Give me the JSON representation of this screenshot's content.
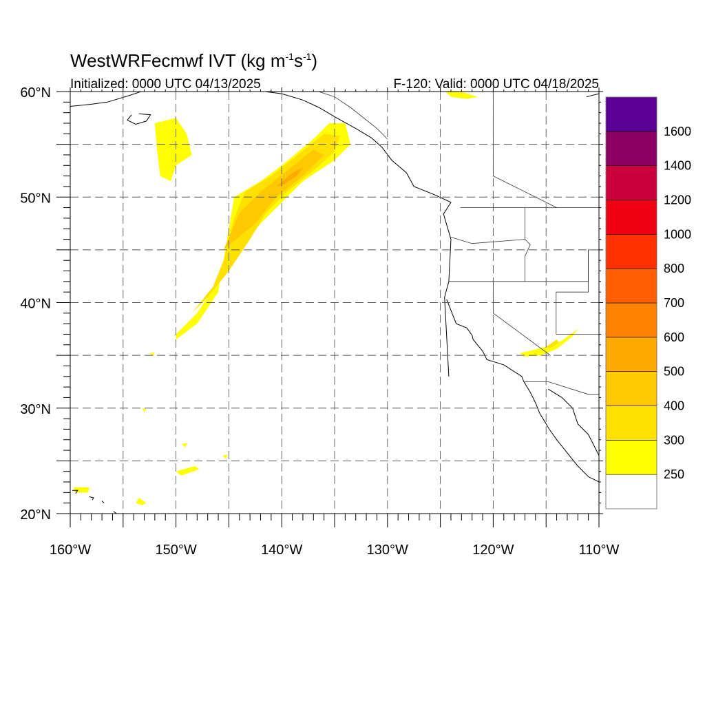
{
  "header": {
    "title_main": "WestWRFecmwf IVT (kg m",
    "title_sup1": "-1",
    "title_mid": "s",
    "title_sup2": "-1",
    "title_end": ")",
    "initialized": "Initialized: 0000 UTC 04/13/2025",
    "valid": "F-120: Valid: 0000 UTC 04/18/2025"
  },
  "map": {
    "lon_range": [
      -160,
      -110
    ],
    "lat_range": [
      20,
      60
    ],
    "lon_ticks": [
      {
        "value": -160,
        "label": "160°W"
      },
      {
        "value": -150,
        "label": "150°W"
      },
      {
        "value": -140,
        "label": "140°W"
      },
      {
        "value": -130,
        "label": "130°W"
      },
      {
        "value": -120,
        "label": "120°W"
      },
      {
        "value": -110,
        "label": "110°W"
      }
    ],
    "lat_ticks": [
      {
        "value": 60,
        "label": "60°N"
      },
      {
        "value": 50,
        "label": "50°N"
      },
      {
        "value": 40,
        "label": "40°N"
      },
      {
        "value": 30,
        "label": "30°N"
      },
      {
        "value": 20,
        "label": "20°N"
      }
    ],
    "grid_spacing_deg": 5,
    "grid": true,
    "grid_style": "dashed"
  },
  "colorbar": {
    "labels": [
      "250",
      "300",
      "400",
      "500",
      "600",
      "700",
      "800",
      "1000",
      "1200",
      "1400",
      "1600"
    ],
    "colors": [
      "#ffffff",
      "#ffff00",
      "#ffe100",
      "#ffc800",
      "#ffaa00",
      "#ff8200",
      "#ff5f00",
      "#ff3200",
      "#ee0010",
      "#c8003c",
      "#8c0064",
      "#5a0096"
    ]
  },
  "ivt_features": [
    {
      "level": 1,
      "pts": [
        [
          -150,
          36.5
        ],
        [
          -148,
          38
        ],
        [
          -146,
          41
        ],
        [
          -145.5,
          44
        ],
        [
          -145,
          47
        ],
        [
          -144.5,
          50
        ],
        [
          -142,
          51.5
        ],
        [
          -140,
          53
        ],
        [
          -137,
          55.5
        ],
        [
          -135.5,
          57
        ],
        [
          -134,
          57
        ],
        [
          -133.5,
          55
        ],
        [
          -135,
          53.5
        ],
        [
          -138,
          51.5
        ],
        [
          -140,
          49.5
        ],
        [
          -142,
          47.5
        ],
        [
          -144,
          45
        ],
        [
          -146,
          42
        ],
        [
          -148,
          39
        ],
        [
          -150,
          37
        ]
      ]
    },
    {
      "level": 2,
      "pts": [
        [
          -148.5,
          39
        ],
        [
          -146.5,
          41.5
        ],
        [
          -145.5,
          44
        ],
        [
          -144.5,
          48
        ],
        [
          -143.5,
          50.5
        ],
        [
          -141,
          52
        ],
        [
          -138.5,
          54
        ],
        [
          -136,
          56
        ],
        [
          -134.5,
          55.8
        ],
        [
          -135,
          54.3
        ],
        [
          -137,
          52.5
        ],
        [
          -139.5,
          50.5
        ],
        [
          -141.5,
          48.5
        ],
        [
          -143,
          46
        ],
        [
          -145,
          43
        ],
        [
          -147,
          40.5
        ]
      ]
    },
    {
      "level": 3,
      "pts": [
        [
          -145.5,
          45
        ],
        [
          -144,
          48.5
        ],
        [
          -142,
          50.5
        ],
        [
          -139.5,
          52.5
        ],
        [
          -137,
          54.5
        ],
        [
          -136,
          54
        ],
        [
          -138,
          52
        ],
        [
          -140.5,
          50
        ],
        [
          -142.5,
          47.5
        ]
      ]
    },
    {
      "level": 4,
      "pts": [
        [
          -140.5,
          51
        ],
        [
          -139,
          52.3
        ],
        [
          -138,
          52.8
        ],
        [
          -138.6,
          52
        ],
        [
          -139.8,
          51.2
        ]
      ]
    },
    {
      "level": 1,
      "pts": [
        [
          -152,
          57
        ],
        [
          -150,
          57.5
        ],
        [
          -149,
          56
        ],
        [
          -148.5,
          54
        ],
        [
          -150,
          53
        ],
        [
          -150.5,
          51.5
        ],
        [
          -151.5,
          52
        ],
        [
          -151.8,
          54.5
        ]
      ]
    },
    {
      "level": 1,
      "pts": [
        [
          -124.5,
          60
        ],
        [
          -123,
          60
        ],
        [
          -121.5,
          59.5
        ],
        [
          -122.5,
          59.3
        ],
        [
          -124,
          59.5
        ]
      ]
    },
    {
      "level": 1,
      "pts": [
        [
          -117.5,
          35.2
        ],
        [
          -115,
          35.8
        ],
        [
          -113.5,
          36.4
        ],
        [
          -112,
          37.5
        ],
        [
          -112.5,
          36.8
        ],
        [
          -114,
          35.6
        ],
        [
          -115.5,
          35
        ],
        [
          -117,
          34.9
        ]
      ]
    },
    {
      "level": 2,
      "pts": [
        [
          -115,
          35.8
        ],
        [
          -114,
          36.5
        ],
        [
          -113.8,
          36.2
        ],
        [
          -114.6,
          35.7
        ]
      ]
    },
    {
      "level": 1,
      "pts": [
        [
          -159.7,
          22.5
        ],
        [
          -158.2,
          22.5
        ],
        [
          -158.3,
          22
        ],
        [
          -159.5,
          22
        ]
      ]
    },
    {
      "level": 1,
      "pts": [
        [
          -153.5,
          21.5
        ],
        [
          -152.8,
          21
        ],
        [
          -153.2,
          20.8
        ],
        [
          -153.8,
          21
        ]
      ]
    },
    {
      "level": 1,
      "pts": [
        [
          -150,
          24
        ],
        [
          -148.2,
          24.5
        ],
        [
          -147.8,
          24.2
        ],
        [
          -149.5,
          23.6
        ]
      ]
    },
    {
      "level": 1,
      "pts": [
        [
          -152.5,
          35.2
        ],
        [
          -152,
          35.3
        ],
        [
          -152.2,
          34.9
        ]
      ]
    },
    {
      "level": 1,
      "pts": [
        [
          -145.6,
          25.5
        ],
        [
          -145.1,
          25.6
        ],
        [
          -145.3,
          25.2
        ]
      ]
    },
    {
      "level": 1,
      "pts": [
        [
          -149.5,
          26.6
        ],
        [
          -148.9,
          26.7
        ],
        [
          -149.1,
          26.3
        ]
      ]
    },
    {
      "level": 1,
      "pts": [
        [
          -153.2,
          30
        ],
        [
          -152.8,
          29.9
        ],
        [
          -153,
          29.6
        ]
      ]
    }
  ],
  "coastlines": [
    [
      [
        -124.2,
        33
      ],
      [
        -124.6,
        40.5
      ],
      [
        -124.2,
        42
      ],
      [
        -124,
        46
      ],
      [
        -124.7,
        48.4
      ],
      [
        -124,
        49.5
      ],
      [
        -125.5,
        50.2
      ],
      [
        -127.5,
        51
      ],
      [
        -128.2,
        52.3
      ],
      [
        -129.6,
        53.5
      ],
      [
        -130.5,
        54.7
      ],
      [
        -131.5,
        55.6
      ],
      [
        -133,
        56.5
      ],
      [
        -134.8,
        57.5
      ],
      [
        -136.5,
        58.5
      ],
      [
        -138,
        59.2
      ],
      [
        -140,
        59.8
      ],
      [
        -142,
        60.05
      ]
    ],
    [
      [
        -124.4,
        40.3
      ],
      [
        -123.5,
        38
      ],
      [
        -122.5,
        37.6
      ],
      [
        -122,
        36.9
      ],
      [
        -121.9,
        36.5
      ],
      [
        -121,
        35.4
      ],
      [
        -120.6,
        34.6
      ],
      [
        -119,
        34.1
      ],
      [
        -117.3,
        33
      ],
      [
        -117.1,
        32.5
      ],
      [
        -116.5,
        31.5
      ],
      [
        -116,
        30.5
      ],
      [
        -115.6,
        29.5
      ],
      [
        -114.7,
        28
      ],
      [
        -114,
        27
      ],
      [
        -112.8,
        25.5
      ],
      [
        -112,
        24.5
      ],
      [
        -111,
        23.5
      ],
      [
        -110,
        23
      ]
    ],
    [
      [
        -114.8,
        31.8
      ],
      [
        -113.5,
        31
      ],
      [
        -112.5,
        30
      ],
      [
        -112,
        28.5
      ],
      [
        -111,
        27.5
      ],
      [
        -110.5,
        26.5
      ],
      [
        -110,
        25.5
      ]
    ],
    [
      [
        -155.9,
        20.2
      ],
      [
        -155.5,
        19.9
      ],
      [
        -155.2,
        20
      ]
    ],
    [
      [
        -159.8,
        22.2
      ],
      [
        -159.3,
        22.2
      ],
      [
        -159.5,
        21.9
      ]
    ],
    [
      [
        -158.2,
        21.6
      ],
      [
        -157.8,
        21.5
      ],
      [
        -157.9,
        21.3
      ]
    ],
    [
      [
        -157,
        21.2
      ],
      [
        -156.8,
        21
      ]
    ],
    [
      [
        -160,
        58.6
      ],
      [
        -158,
        58.8
      ],
      [
        -156.5,
        59
      ],
      [
        -154.5,
        59.6
      ],
      [
        -153,
        60.1
      ]
    ],
    [
      [
        -153.5,
        57.9
      ],
      [
        -152.4,
        57.8
      ],
      [
        -152.8,
        57.2
      ],
      [
        -153.8,
        56.9
      ],
      [
        -154.6,
        57.3
      ],
      [
        -154.2,
        57.8
      ]
    ],
    [
      [
        -111.2,
        59.5
      ],
      [
        -110,
        59.8
      ]
    ]
  ],
  "borders": [
    [
      [
        -123.1,
        49
      ],
      [
        -110,
        49
      ]
    ],
    [
      [
        -124.2,
        42
      ],
      [
        -117,
        42
      ],
      [
        -111,
        42
      ]
    ],
    [
      [
        -120,
        42
      ],
      [
        -120,
        39
      ],
      [
        -114.6,
        35
      ]
    ],
    [
      [
        -124,
        46.2
      ],
      [
        -122,
        45.6
      ],
      [
        -117,
        46
      ]
    ],
    [
      [
        -117,
        49
      ],
      [
        -117,
        46
      ],
      [
        -116.5,
        45.5
      ],
      [
        -117,
        44.4
      ],
      [
        -117,
        42
      ]
    ],
    [
      [
        -111,
        45
      ],
      [
        -111,
        41
      ],
      [
        -114.05,
        41
      ],
      [
        -114.05,
        37
      ]
    ],
    [
      [
        -114.05,
        37
      ],
      [
        -110,
        37
      ]
    ],
    [
      [
        -117.1,
        32.5
      ],
      [
        -114.8,
        32.5
      ],
      [
        -111,
        31.3
      ],
      [
        -110,
        31.3
      ]
    ],
    [
      [
        -141,
        60
      ],
      [
        -141,
        69
      ]
    ],
    [
      [
        -130,
        55.5
      ],
      [
        -131,
        56.5
      ],
      [
        -133.5,
        58.5
      ],
      [
        -135,
        59.5
      ],
      [
        -136.5,
        60
      ]
    ],
    [
      [
        -120,
        60
      ],
      [
        -120,
        55
      ],
      [
        -120,
        52
      ],
      [
        -114,
        49
      ]
    ],
    [
      [
        -111,
        42
      ],
      [
        -111,
        45
      ],
      [
        -110,
        45
      ]
    ]
  ]
}
